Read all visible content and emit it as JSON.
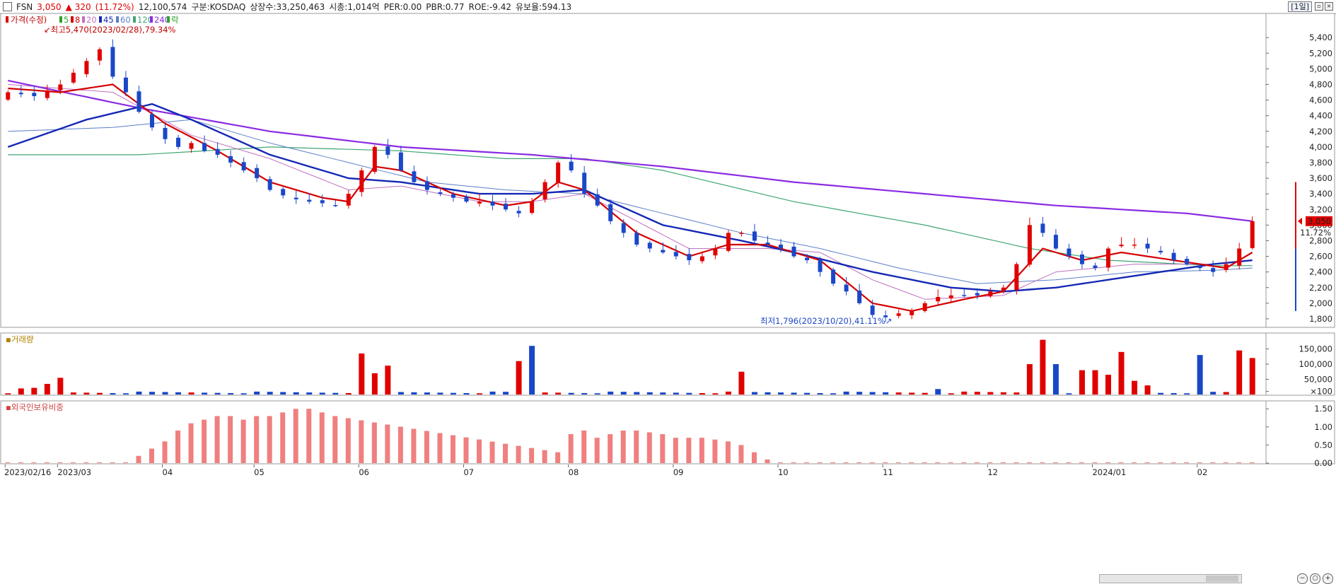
{
  "header": {
    "symbol": "FSN",
    "price": "3,050",
    "change": "▲ 320",
    "change_pct": "(11.72%)",
    "volume": "12,100,574",
    "market": "구분:KOSDAQ",
    "shares": "상장수:33,250,463",
    "market_cap": "시총:1,014억",
    "per": "PER:0.00",
    "pbr": "PBR:0.77",
    "roe": "ROE:-9.42",
    "float_ratio": "유보율:594.13",
    "period_button": "[1일]"
  },
  "colors": {
    "up": "#e00000",
    "down": "#1a47c8",
    "ma5": "#2ca02c",
    "ma8": "#d40000",
    "ma20": "#c070c0",
    "ma45": "#1428b4",
    "ma60": "#5a7fc8",
    "ma120": "#3fa673",
    "ma240": "#8a2be2",
    "foreign": "#f07f7f"
  },
  "price_panel": {
    "legend": {
      "name": "가격(수정)",
      "mas": [
        "5",
        "8",
        "20",
        "45",
        "60",
        "120",
        "240"
      ],
      "tail": "락"
    },
    "high_note": "최고5,470(2023/02/28),79.34%",
    "low_note": "최저1,796(2023/10/20),41.11%",
    "current_price_tag": "3,050",
    "current_pct_tag": "11.72%"
  },
  "volume_panel": {
    "legend": "거래량"
  },
  "foreign_panel": {
    "legend": "외국인보유비중"
  },
  "chart_data": [
    {
      "type": "candlestick",
      "title": "가격(수정)",
      "x": [
        "2023/02/16",
        "2023/03",
        "04",
        "05",
        "06",
        "07",
        "08",
        "09",
        "10",
        "11",
        "12",
        "2024/01",
        "02"
      ],
      "y_ticks": [
        "1,800",
        "2,000",
        "2,200",
        "2,400",
        "2,600",
        "2,800",
        "3,000",
        "3,200",
        "3,400",
        "3,600",
        "3,800",
        "4,000",
        "4,200",
        "4,400",
        "4,600",
        "4,800",
        "5,000",
        "5,200",
        "5,400"
      ],
      "ylim": [
        1700,
        5700
      ],
      "close_path": [
        [
          0,
          4700
        ],
        [
          2,
          4650
        ],
        [
          4,
          4800
        ],
        [
          6,
          5100
        ],
        [
          7,
          5250
        ],
        [
          8,
          4900
        ],
        [
          9,
          4700
        ],
        [
          10,
          4450
        ],
        [
          11,
          4250
        ],
        [
          12,
          4100
        ],
        [
          13,
          4000
        ],
        [
          14,
          4050
        ],
        [
          15,
          3950
        ],
        [
          16,
          3900
        ],
        [
          17,
          3800
        ],
        [
          18,
          3700
        ],
        [
          19,
          3600
        ],
        [
          20,
          3450
        ],
        [
          21,
          3380
        ],
        [
          22,
          3330
        ],
        [
          23,
          3300
        ],
        [
          24,
          3280
        ],
        [
          25,
          3250
        ],
        [
          26,
          3400
        ],
        [
          27,
          3700
        ],
        [
          28,
          4000
        ],
        [
          29,
          3900
        ],
        [
          30,
          3700
        ],
        [
          31,
          3550
        ],
        [
          32,
          3450
        ],
        [
          33,
          3400
        ],
        [
          34,
          3350
        ],
        [
          35,
          3300
        ],
        [
          36,
          3300
        ],
        [
          37,
          3250
        ],
        [
          38,
          3200
        ],
        [
          39,
          3150
        ],
        [
          40,
          3300
        ],
        [
          41,
          3550
        ],
        [
          42,
          3800
        ],
        [
          43,
          3700
        ],
        [
          44,
          3400
        ],
        [
          45,
          3250
        ],
        [
          46,
          3050
        ],
        [
          47,
          2900
        ],
        [
          48,
          2750
        ],
        [
          49,
          2700
        ],
        [
          50,
          2650
        ],
        [
          51,
          2600
        ],
        [
          52,
          2550
        ],
        [
          53,
          2600
        ],
        [
          54,
          2700
        ],
        [
          55,
          2900
        ],
        [
          56,
          2900
        ],
        [
          57,
          2800
        ],
        [
          58,
          2750
        ],
        [
          59,
          2700
        ],
        [
          60,
          2600
        ],
        [
          61,
          2550
        ],
        [
          62,
          2400
        ],
        [
          63,
          2250
        ],
        [
          64,
          2150
        ],
        [
          65,
          2000
        ],
        [
          66,
          1850
        ],
        [
          67,
          1820
        ],
        [
          68,
          1870
        ],
        [
          69,
          1900
        ],
        [
          70,
          2000
        ],
        [
          71,
          2080
        ],
        [
          72,
          2100
        ],
        [
          73,
          2100
        ],
        [
          74,
          2100
        ],
        [
          75,
          2150
        ],
        [
          76,
          2200
        ],
        [
          77,
          2500
        ],
        [
          78,
          3000
        ],
        [
          79,
          2900
        ],
        [
          80,
          2700
        ],
        [
          81,
          2600
        ],
        [
          82,
          2500
        ],
        [
          83,
          2450
        ],
        [
          84,
          2700
        ],
        [
          85,
          2750
        ],
        [
          86,
          2750
        ],
        [
          87,
          2700
        ],
        [
          88,
          2650
        ],
        [
          89,
          2550
        ],
        [
          90,
          2500
        ],
        [
          91,
          2450
        ],
        [
          92,
          2400
        ],
        [
          93,
          2500
        ],
        [
          94,
          2700
        ],
        [
          95,
          3050
        ]
      ],
      "moving_averages": {
        "ma8": [
          [
            0,
            4750
          ],
          [
            4,
            4700
          ],
          [
            8,
            4800
          ],
          [
            12,
            4300
          ],
          [
            16,
            3950
          ],
          [
            20,
            3550
          ],
          [
            24,
            3350
          ],
          [
            26,
            3300
          ],
          [
            28,
            3750
          ],
          [
            30,
            3700
          ],
          [
            34,
            3400
          ],
          [
            38,
            3250
          ],
          [
            40,
            3300
          ],
          [
            42,
            3550
          ],
          [
            44,
            3450
          ],
          [
            48,
            2900
          ],
          [
            52,
            2600
          ],
          [
            55,
            2750
          ],
          [
            58,
            2750
          ],
          [
            62,
            2550
          ],
          [
            66,
            2000
          ],
          [
            69,
            1900
          ],
          [
            73,
            2050
          ],
          [
            76,
            2150
          ],
          [
            79,
            2700
          ],
          [
            82,
            2550
          ],
          [
            85,
            2650
          ],
          [
            89,
            2550
          ],
          [
            93,
            2450
          ],
          [
            95,
            2650
          ]
        ],
        "ma20": [
          [
            0,
            4800
          ],
          [
            8,
            4700
          ],
          [
            14,
            4150
          ],
          [
            20,
            3850
          ],
          [
            26,
            3450
          ],
          [
            30,
            3500
          ],
          [
            36,
            3300
          ],
          [
            40,
            3300
          ],
          [
            44,
            3400
          ],
          [
            48,
            3050
          ],
          [
            52,
            2700
          ],
          [
            58,
            2700
          ],
          [
            62,
            2650
          ],
          [
            66,
            2300
          ],
          [
            70,
            2050
          ],
          [
            76,
            2100
          ],
          [
            80,
            2400
          ],
          [
            86,
            2500
          ],
          [
            92,
            2500
          ],
          [
            95,
            2550
          ]
        ],
        "ma45": [
          [
            0,
            4000
          ],
          [
            6,
            4350
          ],
          [
            11,
            4550
          ],
          [
            14,
            4350
          ],
          [
            20,
            3900
          ],
          [
            26,
            3600
          ],
          [
            30,
            3550
          ],
          [
            36,
            3400
          ],
          [
            40,
            3400
          ],
          [
            44,
            3450
          ],
          [
            50,
            3000
          ],
          [
            56,
            2800
          ],
          [
            60,
            2650
          ],
          [
            66,
            2400
          ],
          [
            72,
            2200
          ],
          [
            76,
            2150
          ],
          [
            80,
            2200
          ],
          [
            86,
            2350
          ],
          [
            92,
            2500
          ],
          [
            95,
            2550
          ]
        ],
        "ma60": [
          [
            0,
            4200
          ],
          [
            8,
            4250
          ],
          [
            14,
            4350
          ],
          [
            20,
            4050
          ],
          [
            26,
            3800
          ],
          [
            32,
            3550
          ],
          [
            38,
            3450
          ],
          [
            44,
            3400
          ],
          [
            50,
            3150
          ],
          [
            56,
            2900
          ],
          [
            62,
            2700
          ],
          [
            68,
            2450
          ],
          [
            74,
            2250
          ],
          [
            80,
            2300
          ],
          [
            86,
            2400
          ],
          [
            92,
            2420
          ],
          [
            95,
            2450
          ]
        ],
        "ma120": [
          [
            0,
            3900
          ],
          [
            10,
            3900
          ],
          [
            20,
            4000
          ],
          [
            30,
            3950
          ],
          [
            38,
            3850
          ],
          [
            44,
            3850
          ],
          [
            50,
            3700
          ],
          [
            60,
            3300
          ],
          [
            70,
            3000
          ],
          [
            78,
            2700
          ],
          [
            84,
            2550
          ],
          [
            92,
            2480
          ],
          [
            95,
            2480
          ]
        ],
        "ma240": [
          [
            0,
            4850
          ],
          [
            10,
            4500
          ],
          [
            20,
            4200
          ],
          [
            30,
            4000
          ],
          [
            40,
            3900
          ],
          [
            50,
            3750
          ],
          [
            60,
            3550
          ],
          [
            70,
            3400
          ],
          [
            80,
            3250
          ],
          [
            90,
            3150
          ],
          [
            95,
            3050
          ]
        ]
      }
    },
    {
      "type": "bar",
      "title": "거래량",
      "y_ticks": [
        "150,000",
        "100,000",
        "50,000",
        "×100"
      ],
      "ylim": [
        0,
        200000
      ],
      "spikes": [
        [
          1,
          20000,
          "up"
        ],
        [
          2,
          22000,
          "up"
        ],
        [
          3,
          35000,
          "up"
        ],
        [
          4,
          55000,
          "up"
        ],
        [
          27,
          135000,
          "up"
        ],
        [
          28,
          70000,
          "up"
        ],
        [
          29,
          95000,
          "up"
        ],
        [
          39,
          110000,
          "up"
        ],
        [
          40,
          160000,
          "down"
        ],
        [
          56,
          75000,
          "up"
        ],
        [
          71,
          18000,
          "down"
        ],
        [
          78,
          100000,
          "up"
        ],
        [
          79,
          180000,
          "up"
        ],
        [
          80,
          100000,
          "down"
        ],
        [
          82,
          80000,
          "up"
        ],
        [
          83,
          80000,
          "up"
        ],
        [
          84,
          65000,
          "up"
        ],
        [
          85,
          140000,
          "up"
        ],
        [
          86,
          45000,
          "up"
        ],
        [
          87,
          30000,
          "up"
        ],
        [
          91,
          130000,
          "down"
        ],
        [
          94,
          145000,
          "up"
        ],
        [
          95,
          120000,
          "up"
        ]
      ]
    },
    {
      "type": "bar",
      "title": "외국인보유비중",
      "y_ticks": [
        "1.50",
        "1.00",
        "0.50",
        "0.00"
      ],
      "ylim": [
        0,
        1.7
      ],
      "values": [
        [
          10,
          0.2
        ],
        [
          11,
          0.4
        ],
        [
          12,
          0.6
        ],
        [
          13,
          0.9
        ],
        [
          14,
          1.1
        ],
        [
          15,
          1.2
        ],
        [
          16,
          1.3
        ],
        [
          17,
          1.3
        ],
        [
          18,
          1.2
        ],
        [
          19,
          1.3
        ],
        [
          20,
          1.3
        ],
        [
          21,
          1.4
        ],
        [
          22,
          1.5
        ],
        [
          23,
          1.5
        ],
        [
          24,
          1.4
        ],
        [
          25,
          1.3
        ],
        [
          42,
          0.3
        ],
        [
          43,
          0.8
        ],
        [
          44,
          0.9
        ],
        [
          45,
          0.7
        ],
        [
          46,
          0.8
        ],
        [
          47,
          0.9
        ],
        [
          48,
          0.9
        ],
        [
          49,
          0.85
        ],
        [
          50,
          0.8
        ],
        [
          51,
          0.7
        ],
        [
          52,
          0.7
        ],
        [
          53,
          0.7
        ],
        [
          54,
          0.65
        ],
        [
          55,
          0.6
        ],
        [
          56,
          0.5
        ],
        [
          57,
          0.3
        ],
        [
          58,
          0.1
        ]
      ]
    }
  ]
}
